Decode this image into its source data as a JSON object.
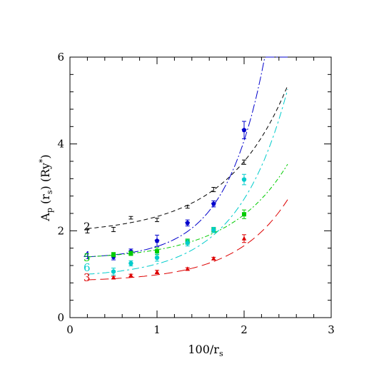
{
  "chart_data": {
    "type": "scatter",
    "title": "",
    "xlabel": {
      "main": "100/r",
      "sub": "s"
    },
    "ylabel": {
      "main": "A",
      "sub1": "p",
      "mid": " (r",
      "sub2": "s",
      "tail": ") (Ry",
      "sup": "*",
      "end": ")"
    },
    "xlim": [
      0,
      3
    ],
    "ylim": [
      0,
      6
    ],
    "x_ticks": [
      "0",
      "1",
      "2",
      "3"
    ],
    "y_ticks": [
      "0",
      "2",
      "4",
      "6"
    ],
    "grid": false,
    "series": [
      {
        "name": "2",
        "color": "#000000",
        "marker": "cross",
        "x": [
          0.2,
          0.5,
          0.7,
          1.0,
          1.35,
          1.65,
          2.0
        ],
        "y": [
          2.0,
          2.03,
          2.3,
          2.25,
          2.55,
          2.95,
          3.58
        ],
        "err": [
          0.05,
          0.05,
          0.03,
          0.04,
          0.03,
          0.05,
          0.05
        ],
        "fit_x": [
          0.2,
          2.5
        ],
        "fit_y0": 2.05,
        "fit_params": {
          "a": 0.28,
          "b": 1.42
        }
      },
      {
        "name": "4",
        "color": "#0000cc",
        "marker": "pentagon",
        "x": [
          0.5,
          0.7,
          1.0,
          1.35,
          1.65,
          2.0
        ],
        "y": [
          1.4,
          1.52,
          1.77,
          2.18,
          2.62,
          4.32
        ],
        "err": [
          0.07,
          0.06,
          0.13,
          0.07,
          0.07,
          0.2
        ],
        "fit_params": {
          "c": 1.4,
          "a": 0.095,
          "b": 2.25
        }
      },
      {
        "name": "5",
        "color": "#00cc00",
        "marker": "square",
        "x": [
          0.5,
          0.7,
          1.0,
          1.35,
          1.65,
          2.0
        ],
        "y": [
          1.45,
          1.48,
          1.53,
          1.75,
          2.02,
          2.38
        ],
        "err": [
          0.05,
          0.05,
          0.08,
          0.06,
          0.06,
          0.1
        ],
        "fit_params": {
          "c": 1.4,
          "a": 0.14,
          "b": 1.5
        }
      },
      {
        "name": "6",
        "color": "#00cccc",
        "marker": "circle",
        "x": [
          0.5,
          0.7,
          1.0,
          1.35,
          1.65,
          2.0
        ],
        "y": [
          1.06,
          1.25,
          1.38,
          1.72,
          2.02,
          3.18
        ],
        "err": [
          0.08,
          0.06,
          0.08,
          0.07,
          0.06,
          0.12
        ],
        "fit_params": {
          "c": 1.0,
          "a": 0.155,
          "b": 1.75
        }
      },
      {
        "name": "3",
        "color": "#dd0000",
        "marker": "triangle",
        "x": [
          0.5,
          0.7,
          1.0,
          1.35,
          1.65,
          2.0
        ],
        "y": [
          0.92,
          0.97,
          1.05,
          1.12,
          1.36,
          1.82
        ],
        "err": [
          0.03,
          0.03,
          0.04,
          0.03,
          0.03,
          0.09
        ],
        "fit_params": {
          "c": 0.87,
          "a": 0.085,
          "b": 1.65
        }
      }
    ],
    "curve_labels": [
      {
        "text": "2",
        "color": "#000000",
        "x": 0.27,
        "y": 2.1
      },
      {
        "text": "4",
        "color": "#0000cc",
        "x": 0.27,
        "y": 1.43
      },
      {
        "text": "5",
        "color": "#00cc00",
        "x": 0.27,
        "y": 1.38
      },
      {
        "text": "6",
        "color": "#00cccc",
        "x": 0.27,
        "y": 1.15
      },
      {
        "text": "3",
        "color": "#dd0000",
        "x": 0.27,
        "y": 0.92
      }
    ]
  }
}
